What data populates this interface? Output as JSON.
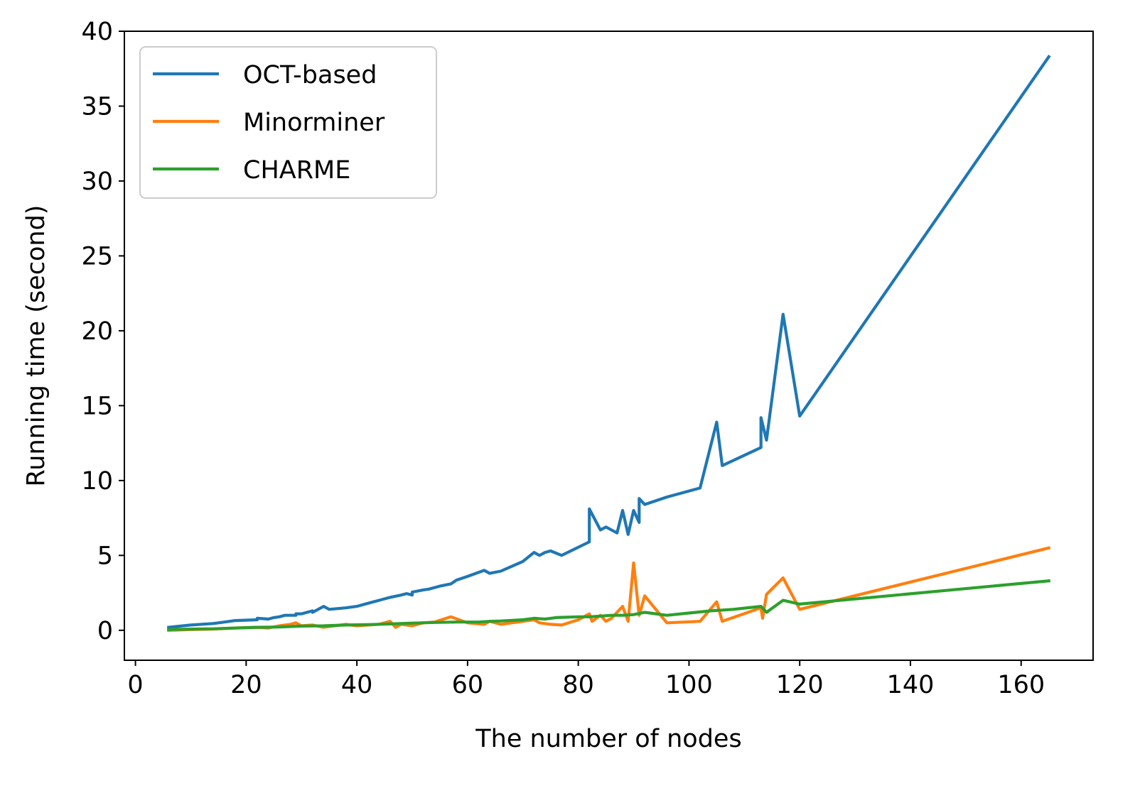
{
  "chart_data": {
    "type": "line",
    "xlabel": "The number of nodes",
    "ylabel": "Running time (second)",
    "xlim": [
      -2,
      173
    ],
    "ylim": [
      -2,
      40
    ],
    "xticks": [
      0,
      20,
      40,
      60,
      80,
      100,
      120,
      140,
      160
    ],
    "yticks": [
      0,
      5,
      10,
      15,
      20,
      25,
      30,
      35,
      40
    ],
    "grid": false,
    "legend_position": "top-left",
    "series": [
      {
        "name": "OCT-based",
        "color": "#1f77b4",
        "x": [
          6,
          10,
          14,
          15,
          17,
          18,
          22,
          22,
          24,
          25,
          26,
          27,
          29,
          29,
          30,
          32,
          32,
          33,
          34,
          35,
          38,
          40,
          42,
          44,
          46,
          48,
          49,
          50,
          50,
          52,
          53,
          55,
          57,
          58,
          60,
          63,
          64,
          66,
          70,
          72,
          73,
          74,
          75,
          77,
          82,
          82,
          84,
          85,
          87,
          88,
          89,
          90,
          91,
          91,
          91.5,
          92,
          96,
          102,
          105,
          106,
          113,
          113,
          114,
          117,
          120,
          165
        ],
        "y": [
          0.2,
          0.35,
          0.45,
          0.5,
          0.6,
          0.65,
          0.7,
          0.8,
          0.75,
          0.85,
          0.9,
          1.0,
          1.0,
          1.1,
          1.1,
          1.3,
          1.2,
          1.4,
          1.6,
          1.4,
          1.5,
          1.6,
          1.8,
          2.0,
          2.2,
          2.35,
          2.45,
          2.35,
          2.55,
          2.7,
          2.75,
          2.95,
          3.1,
          3.35,
          3.6,
          4.0,
          3.8,
          3.95,
          4.6,
          5.2,
          5.0,
          5.2,
          5.3,
          5.0,
          5.9,
          8.1,
          6.7,
          6.9,
          6.5,
          8.0,
          6.4,
          8.0,
          7.2,
          8.8,
          8.6,
          8.4,
          8.9,
          9.5,
          13.9,
          11.0,
          12.2,
          14.2,
          12.7,
          21.1,
          14.3,
          38.3
        ]
      },
      {
        "name": "Minorminer",
        "color": "#ff7f0e",
        "x": [
          6,
          10,
          14,
          18,
          22,
          24,
          26,
          28,
          29,
          30,
          32,
          34,
          36,
          38,
          40,
          42,
          44,
          46,
          47,
          48,
          50,
          52,
          54,
          57,
          60,
          63,
          64,
          66,
          70,
          72,
          73,
          75,
          77,
          80,
          82,
          82.5,
          84,
          85,
          86,
          87,
          88,
          89,
          90,
          91,
          92,
          96,
          102,
          105,
          106,
          113,
          113.3,
          114,
          117,
          120,
          165
        ],
        "y": [
          0.0,
          0.05,
          0.08,
          0.15,
          0.2,
          0.15,
          0.3,
          0.4,
          0.5,
          0.3,
          0.35,
          0.2,
          0.3,
          0.4,
          0.3,
          0.35,
          0.4,
          0.6,
          0.2,
          0.4,
          0.3,
          0.5,
          0.55,
          0.9,
          0.5,
          0.4,
          0.6,
          0.4,
          0.6,
          0.7,
          0.5,
          0.4,
          0.35,
          0.7,
          1.1,
          0.6,
          1.0,
          0.6,
          0.8,
          1.2,
          1.6,
          0.6,
          4.5,
          1.0,
          2.3,
          0.5,
          0.6,
          1.9,
          0.6,
          1.5,
          0.8,
          2.4,
          3.5,
          1.4,
          5.5
        ]
      },
      {
        "name": "CHARME",
        "color": "#2ca02c",
        "x": [
          6,
          10,
          14,
          18,
          22,
          26,
          30,
          34,
          38,
          42,
          46,
          50,
          54,
          58,
          62,
          64,
          66,
          70,
          72,
          74,
          76,
          80,
          82,
          84,
          86,
          88,
          90,
          92,
          96,
          100,
          104,
          108,
          113,
          114,
          117,
          120,
          165
        ],
        "y": [
          0.05,
          0.08,
          0.1,
          0.15,
          0.2,
          0.22,
          0.28,
          0.3,
          0.35,
          0.38,
          0.42,
          0.48,
          0.52,
          0.55,
          0.55,
          0.6,
          0.62,
          0.7,
          0.8,
          0.75,
          0.85,
          0.9,
          0.9,
          0.95,
          1.0,
          1.0,
          1.05,
          1.2,
          1.0,
          1.15,
          1.3,
          1.4,
          1.6,
          1.2,
          2.0,
          1.75,
          3.3
        ]
      }
    ]
  }
}
